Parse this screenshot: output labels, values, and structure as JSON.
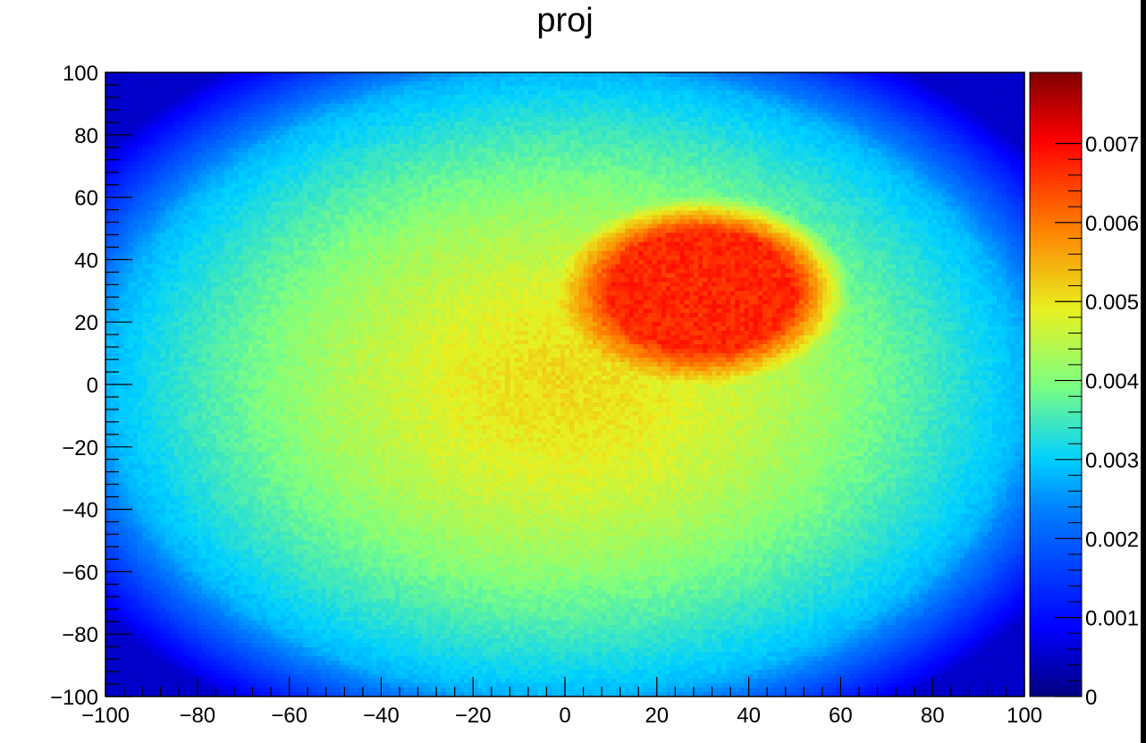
{
  "chart_data": {
    "type": "heatmap",
    "title": "proj",
    "xlabel": "",
    "ylabel": "",
    "xlim": [
      -100,
      100
    ],
    "ylim": [
      -100,
      100
    ],
    "x_ticks": [
      "−100",
      "−80",
      "−60",
      "−40",
      "−20",
      "0",
      "20",
      "40",
      "60",
      "80",
      "100"
    ],
    "x_tick_values": [
      -100,
      -80,
      -60,
      -40,
      -20,
      0,
      20,
      40,
      60,
      80,
      100
    ],
    "y_ticks": [
      "−100",
      "−80",
      "−60",
      "−40",
      "−20",
      "0",
      "20",
      "40",
      "60",
      "80",
      "100"
    ],
    "y_tick_values": [
      -100,
      -80,
      -60,
      -40,
      -20,
      0,
      20,
      40,
      60,
      80,
      100
    ],
    "zlim": [
      0,
      0.0079
    ],
    "z_ticks": [
      "0",
      "0.001",
      "0.002",
      "0.003",
      "0.004",
      "0.005",
      "0.006",
      "0.007"
    ],
    "z_tick_values": [
      0,
      0.001,
      0.002,
      0.003,
      0.004,
      0.005,
      0.006,
      0.007
    ],
    "colormap": "jet",
    "features": {
      "disk_center": [
        0,
        0
      ],
      "disk_radius_x": 100,
      "disk_radius_y": 100,
      "disk_value_center": 0.0051,
      "disk_value_edge": 0.0028,
      "outside_value": 0.0005,
      "hotspot_center": [
        30,
        30
      ],
      "hotspot_radius_x": 20,
      "hotspot_radius_y": 19,
      "hotspot_value": 0.0067
    },
    "grid": false,
    "legend": "colorbar-right"
  }
}
